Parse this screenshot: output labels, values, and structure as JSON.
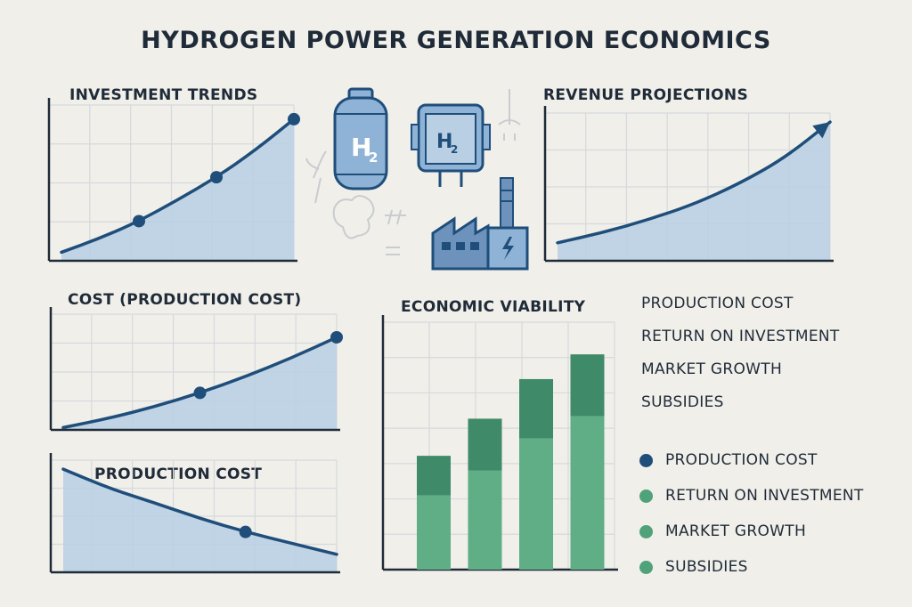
{
  "title": "HYDROGEN POWER GENERATION ECONOMICS",
  "colors": {
    "line": "#1f4e7a",
    "fill": "#b9cfe4",
    "bar_top": "#3f8a68",
    "bar_bottom": "#5fae86",
    "grid": "#d5d9dd",
    "dot_blue": "#1f4e7a",
    "dot_green": "#4fa27a"
  },
  "icons": {
    "tank_label": "H",
    "tank_sub": "2",
    "cell_label": "H",
    "cell_sub": "2"
  },
  "chart_data": [
    {
      "type": "area",
      "title": "INVESTMENT TRENDS",
      "x": [
        0,
        1,
        2,
        3,
        4,
        5,
        6
      ],
      "y": [
        6,
        16,
        28,
        43,
        59,
        78,
        100
      ],
      "markers": [
        2,
        4,
        6
      ],
      "ylim": [
        0,
        110
      ],
      "grid": true
    },
    {
      "type": "area",
      "title": "REVENUE PROJECTIONS",
      "x": [
        0,
        1,
        2,
        3,
        4,
        5,
        6
      ],
      "y": [
        14,
        22,
        32,
        44,
        60,
        80,
        108
      ],
      "arrow": true,
      "ylim": [
        0,
        115
      ],
      "grid": true
    },
    {
      "type": "area",
      "title": "COST (PRODUCTION COST)",
      "x": [
        0,
        1,
        2,
        3,
        4,
        5,
        6
      ],
      "y": [
        2,
        10,
        20,
        32,
        46,
        62,
        80
      ],
      "markers": [
        3,
        6
      ],
      "ylim": [
        0,
        100
      ],
      "grid": true
    },
    {
      "type": "area",
      "title": "PRODUCTION COST",
      "x": [
        0,
        1,
        2,
        3,
        4,
        5,
        6
      ],
      "y": [
        92,
        75,
        62,
        48,
        36,
        26,
        16
      ],
      "markers": [
        4
      ],
      "ylim": [
        0,
        100
      ],
      "grid": true
    },
    {
      "type": "bar",
      "title": "ECONOMIC VIABILITY",
      "categories": [
        "1",
        "2",
        "3",
        "4"
      ],
      "series": [
        {
          "values": [
            30,
            40,
            53,
            62
          ]
        },
        {
          "values": [
            16,
            21,
            24,
            25
          ]
        }
      ],
      "ylim": [
        0,
        100
      ],
      "grid": true
    }
  ],
  "list_items": [
    "PRODUCTION COST",
    "RETURN ON INVESTMENT",
    "MARKET GROWTH",
    "SUBSIDIES"
  ],
  "legend": [
    {
      "label": "PRODUCTION COST",
      "color": "#1f4e7a"
    },
    {
      "label": "RETURN ON INVESTMENT",
      "color": "#4fa27a"
    },
    {
      "label": "MARKET GROWTH",
      "color": "#4fa27a"
    },
    {
      "label": "SUBSIDIES",
      "color": "#4fa27a"
    }
  ]
}
